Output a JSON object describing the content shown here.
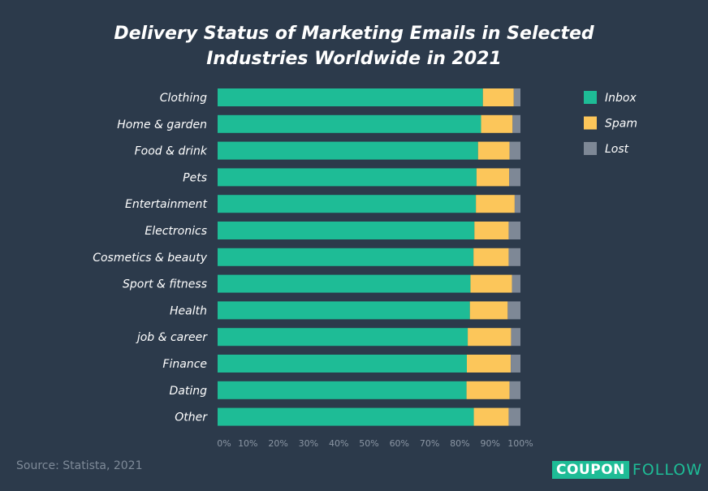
{
  "chart_data": {
    "type": "bar",
    "orientation": "horizontal",
    "stacked": true,
    "title": "Delivery Status of Marketing Emails in Selected Industries Worldwide in 2021",
    "title_lines": [
      "Delivery Status of Marketing Emails in Selected",
      "Industries Worldwide in 2021"
    ],
    "categories": [
      "Clothing",
      "Home & garden",
      "Food & drink",
      "Pets",
      "Entertainment",
      "Electronics",
      "Cosmetics & beauty",
      "Sport & fitness",
      "Health",
      "job & career",
      "Finance",
      "Dating",
      "Other"
    ],
    "series": [
      {
        "name": "Inbox",
        "color": "#1ebc96",
        "values": [
          87.6,
          87.0,
          86.0,
          85.5,
          85.3,
          84.8,
          84.5,
          83.5,
          83.3,
          82.6,
          82.3,
          82.2,
          84.6
        ]
      },
      {
        "name": "Spam",
        "color": "#fcc65a",
        "values": [
          10.2,
          10.4,
          10.4,
          10.8,
          12.8,
          11.3,
          11.6,
          13.7,
          12.5,
          14.3,
          14.5,
          14.2,
          11.5
        ]
      },
      {
        "name": "Lost",
        "color": "#7e8896",
        "values": [
          2.2,
          2.6,
          3.6,
          3.7,
          1.9,
          3.9,
          3.9,
          2.8,
          4.2,
          3.1,
          3.2,
          3.6,
          3.9
        ]
      }
    ],
    "xlim": [
      0,
      100
    ],
    "xticks": [
      "0%",
      "10%",
      "20%",
      "30%",
      "40%",
      "50%",
      "60%",
      "70%",
      "80%",
      "90%",
      "100%"
    ],
    "legend_position": "right",
    "grid": false
  },
  "source": "Source: Statista, 2021",
  "logo": {
    "part1": "COUPON",
    "part2": "FOLLOW"
  }
}
